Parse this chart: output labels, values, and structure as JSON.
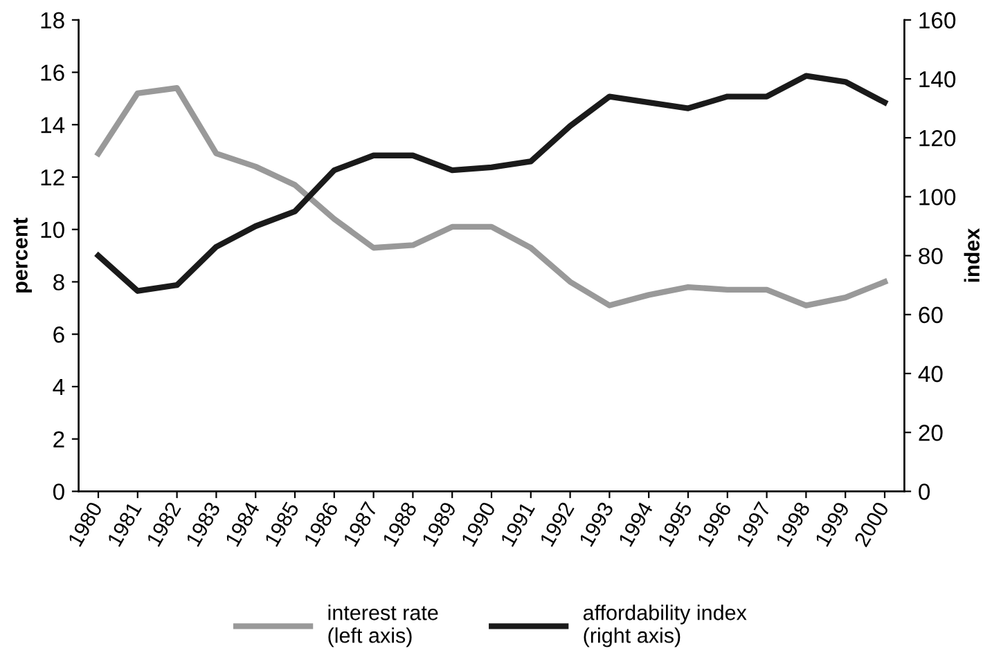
{
  "chart_data": {
    "type": "line",
    "ylabel": "percent",
    "y2label": "index",
    "categories": [
      "1980",
      "1981",
      "1982",
      "1983",
      "1984",
      "1985",
      "1986",
      "1987",
      "1988",
      "1989",
      "1990",
      "1991",
      "1992",
      "1993",
      "1994",
      "1995",
      "1996",
      "1997",
      "1998",
      "1999",
      "2000"
    ],
    "series": [
      {
        "name": "interest rate\n(left axis)",
        "color": "#999999",
        "values": [
          12.9,
          15.2,
          15.4,
          12.9,
          12.4,
          11.7,
          10.4,
          9.3,
          9.4,
          10.1,
          10.1,
          9.3,
          8.0,
          7.1,
          7.5,
          7.8,
          7.7,
          7.7,
          7.1,
          7.4,
          8.0
        ]
      },
      {
        "name": "affordability index\n(right axis)",
        "color": "#1a1a1a",
        "axis": "y2",
        "values": [
          80,
          68,
          70,
          83,
          90,
          95,
          109,
          114,
          114,
          109,
          110,
          112,
          124,
          134,
          132,
          130,
          134,
          134,
          141,
          139,
          132
        ]
      }
    ],
    "ylim": [
      0,
      18
    ],
    "yticks": [
      0,
      2,
      4,
      6,
      8,
      10,
      12,
      14,
      16,
      18
    ],
    "y2lim": [
      0,
      160
    ],
    "y2ticks": [
      0,
      20,
      40,
      60,
      80,
      100,
      120,
      140,
      160
    ],
    "grid": false,
    "legend": "bottom",
    "marker": "none",
    "line_style": "solid"
  }
}
